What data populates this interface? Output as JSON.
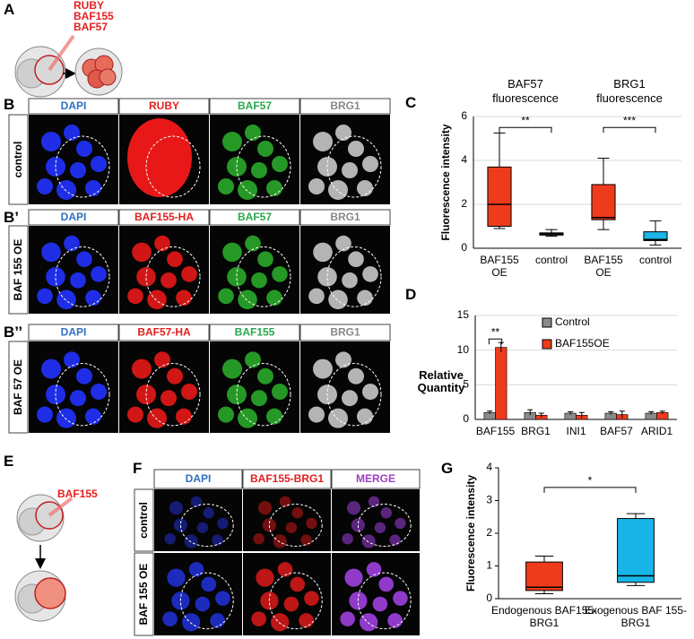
{
  "panel_labels": {
    "a": "A",
    "b": "B",
    "b2": "B’",
    "b3": "B’’",
    "c": "C",
    "d": "D",
    "e": "E",
    "f": "F",
    "g": "G"
  },
  "panel_a": {
    "injected": [
      "RUBY",
      "BAF155",
      "BAF57"
    ]
  },
  "panel_b": {
    "rows": [
      {
        "label": "control",
        "channels": [
          "DAPI",
          "RUBY",
          "BAF57",
          "BRG1"
        ]
      },
      {
        "label": "BAF 155 OE",
        "channels": [
          "DAPI",
          "BAF155-HA",
          "BAF57",
          "BRG1"
        ]
      },
      {
        "label": "BAF 57 OE",
        "channels": [
          "DAPI",
          "BAF57-HA",
          "BAF155",
          "BRG1"
        ]
      }
    ]
  },
  "panel_e": {
    "injected": "BAF155"
  },
  "panel_f": {
    "channels": [
      "DAPI",
      "BAF155-BRG1",
      "MERGE"
    ],
    "rows": [
      "control",
      "BAF 155 OE"
    ]
  },
  "chart_data": [
    {
      "type": "box",
      "y_label": "Fluorescence intensity",
      "group_titles": [
        "BAF57 fluorescence",
        "BRG1 fluorescence"
      ],
      "categories": [
        "BAF155 OE",
        "control",
        "BAF155 OE",
        "control"
      ],
      "min": [
        0.9,
        0.55,
        0.85,
        0.15
      ],
      "q1": [
        1.0,
        0.6,
        1.3,
        0.35
      ],
      "median": [
        2.0,
        0.65,
        1.4,
        0.4
      ],
      "q3": [
        3.7,
        0.7,
        2.9,
        0.75
      ],
      "max": [
        5.25,
        0.85,
        4.1,
        1.25
      ],
      "colors": [
        "#ee3b1b",
        "#444444",
        "#ee3b1b",
        "#19b5e8"
      ],
      "annotations": [
        "**",
        "***"
      ],
      "ylim": [
        0,
        6
      ],
      "yticks": [
        0,
        2,
        4,
        6
      ],
      "grid": true
    },
    {
      "type": "bar",
      "y_label": "Relative Quantity",
      "categories": [
        "BAF155",
        "BRG1",
        "INI1",
        "BAF57",
        "ARID1"
      ],
      "series": [
        {
          "name": "Control",
          "color": "#8a8a8a",
          "values": [
            1,
            1,
            0.9,
            0.9,
            0.9
          ],
          "errors": [
            0.2,
            0.4,
            0.2,
            0.2,
            0.2
          ]
        },
        {
          "name": "BAF155OE",
          "color": "#ee3b1b",
          "values": [
            10.4,
            0.6,
            0.6,
            0.7,
            1.0
          ],
          "errors": [
            0.7,
            0.3,
            0.4,
            0.5,
            0.2
          ]
        }
      ],
      "annotations": [
        "**"
      ],
      "ylim": [
        0,
        15
      ],
      "yticks": [
        0,
        5,
        10,
        15
      ],
      "grid": true,
      "legend": "top-right"
    },
    {
      "type": "box",
      "y_label": "Fluorescence intensity",
      "categories": [
        "Endogenous BAF155-BRG1",
        "Exogenous BAF 155-BRG1"
      ],
      "min": [
        0.15,
        0.4
      ],
      "q1": [
        0.25,
        0.5
      ],
      "median": [
        0.35,
        0.7
      ],
      "q3": [
        1.12,
        2.45
      ],
      "max": [
        1.3,
        2.6
      ],
      "colors": [
        "#ee3b1b",
        "#19b5e8"
      ],
      "annotations": [
        "*"
      ],
      "ylim": [
        0,
        4
      ],
      "yticks": [
        0,
        1,
        2,
        3,
        4
      ],
      "grid": false
    }
  ]
}
